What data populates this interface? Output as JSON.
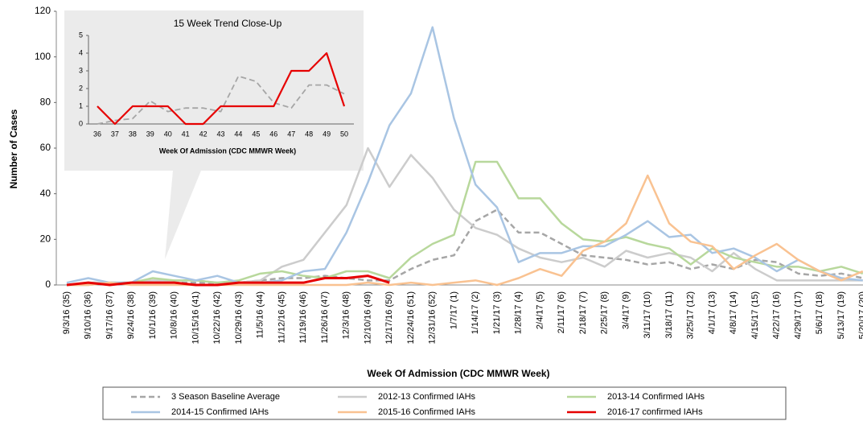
{
  "chart_data": [
    {
      "type": "line",
      "y_label": "Number of Cases",
      "x_label": "Week Of Admission  (CDC MMWR Week)",
      "categories": [
        "9/3/16 (35)",
        "9/10/16 (36)",
        "9/17/16 (37)",
        "9/24/16 (38)",
        "10/1/16 (39)",
        "10/8/16 (40)",
        "10/15/16 (41)",
        "10/22/16 (42)",
        "10/29/16 (43)",
        "11/5/16 (44)",
        "11/12/16 (45)",
        "11/19/16 (46)",
        "11/26/16 (47)",
        "12/3/16 (48)",
        "12/10/16 (49)",
        "12/17/16 (50)",
        "12/24/16 (51)",
        "12/31/16 (52)",
        "1/7/17 (1)",
        "1/14/17 (2)",
        "1/21/17 (3)",
        "1/28/17 (4)",
        "2/4/17 (5)",
        "2/11/17 (6)",
        "2/18/17 (7)",
        "2/25/17 (8)",
        "3/4/17 (9)",
        "3/11/17 (10)",
        "3/18/17 (11)",
        "3/25/17 (12)",
        "4/1/17 (13)",
        "4/8/17 (14)",
        "4/15/17 (15)",
        "4/22/17 (16)",
        "4/29/17 (17)",
        "5/6/17 (18)",
        "5/13/17 (19)",
        "5/20/17 (20)"
      ],
      "ylim": [
        0,
        120
      ],
      "yticks": [
        0,
        20,
        40,
        60,
        80,
        100,
        120
      ],
      "series": [
        {
          "name": "3 Season Baseline Average",
          "color": "#a6a6a6",
          "dashed": true,
          "values": [
            0,
            1,
            1,
            1,
            1,
            1,
            1,
            1,
            1,
            2,
            3,
            3,
            4,
            3,
            2,
            2,
            7,
            11,
            13,
            28,
            33,
            23,
            23,
            18,
            13,
            12,
            11,
            9,
            10,
            7,
            9,
            7,
            11,
            10,
            5,
            4,
            5,
            3
          ]
        },
        {
          "name": "2012-13 Confirmed IAHs",
          "color": "#cccccc",
          "values": [
            0,
            1,
            1,
            1,
            2,
            2,
            2,
            1,
            1,
            2,
            8,
            11,
            23,
            35,
            60,
            43,
            57,
            47,
            33,
            25,
            22,
            16,
            12,
            10,
            12,
            8,
            15,
            12,
            14,
            12,
            6,
            14,
            7,
            2,
            2,
            2,
            2,
            2
          ]
        },
        {
          "name": "2013-14 Confirmed IAHs",
          "color": "#b8d89c",
          "values": [
            0,
            0,
            1,
            1,
            3,
            2,
            2,
            1,
            2,
            5,
            6,
            4,
            3,
            6,
            6,
            3,
            12,
            18,
            22,
            54,
            54,
            38,
            38,
            27,
            20,
            19,
            21,
            18,
            16,
            9,
            16,
            12,
            10,
            8,
            8,
            6,
            8,
            5
          ]
        },
        {
          "name": "2014-15 Confirmed IAHs",
          "color": "#a9c5e3",
          "values": [
            1,
            3,
            1,
            1,
            6,
            4,
            2,
            4,
            1,
            1,
            2,
            6,
            7,
            23,
            45,
            70,
            84,
            113,
            73,
            44,
            34,
            10,
            14,
            14,
            17,
            17,
            22,
            28,
            21,
            22,
            14,
            16,
            12,
            6,
            11,
            6,
            3,
            2
          ]
        },
        {
          "name": "2015-16 Confirmed IAHs",
          "color": "#f9c291",
          "values": [
            0,
            0,
            1,
            0,
            0,
            0,
            0,
            0,
            0,
            0,
            0,
            0,
            0,
            0,
            1,
            0,
            1,
            0,
            1,
            2,
            0,
            3,
            7,
            4,
            15,
            19,
            27,
            48,
            27,
            19,
            17,
            7,
            13,
            18,
            11,
            6,
            2,
            6
          ]
        },
        {
          "name": "2016-17 confirmed IAHs",
          "color": "#e60000",
          "values": [
            0,
            1,
            0,
            1,
            1,
            1,
            0,
            0,
            1,
            1,
            1,
            1,
            3,
            3,
            4,
            1,
            null,
            null,
            null,
            null,
            null,
            null,
            null,
            null,
            null,
            null,
            null,
            null,
            null,
            null,
            null,
            null,
            null,
            null,
            null,
            null,
            null,
            null
          ]
        }
      ]
    },
    {
      "type": "line",
      "title": "15 Week Trend Close-Up",
      "x_label": "Week Of Admission  (CDC MMWR Week)",
      "categories": [
        "36",
        "37",
        "38",
        "39",
        "40",
        "41",
        "42",
        "43",
        "44",
        "45",
        "46",
        "47",
        "48",
        "49",
        "50"
      ],
      "ylim": [
        0,
        5
      ],
      "yticks": [
        0,
        1,
        2,
        3,
        4,
        5
      ],
      "series": [
        {
          "name": "3 Season Baseline Average",
          "color": "#a6a6a6",
          "dashed": true,
          "values": [
            0,
            0.2,
            0.3,
            1.3,
            0.7,
            0.9,
            0.9,
            0.7,
            2.7,
            2.4,
            1.2,
            0.9,
            2.2,
            2.2,
            1.7
          ]
        },
        {
          "name": "2016-17 confirmed IAHs",
          "color": "#e60000",
          "values": [
            1,
            0,
            1,
            1,
            1,
            0,
            0,
            1,
            1,
            1,
            1,
            3,
            3,
            4,
            1
          ]
        }
      ]
    }
  ]
}
